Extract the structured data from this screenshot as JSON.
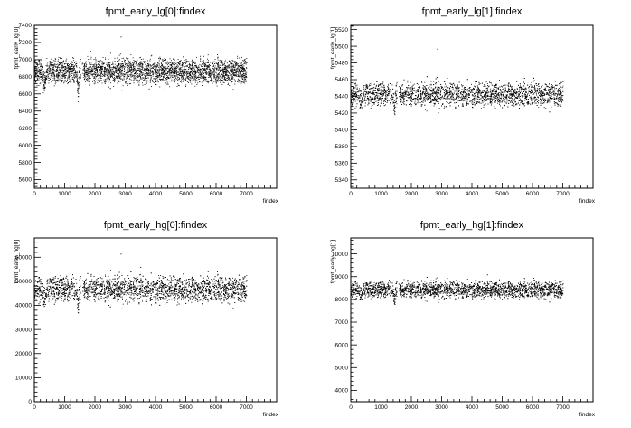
{
  "chart_data": [
    {
      "type": "scatter",
      "title": "fpmt_early_lg[0]:findex",
      "xlabel": "findex",
      "ylabel": "fpmt_early_lg[0]",
      "xlim": [
        0,
        8000
      ],
      "ylim": [
        5500,
        7400
      ],
      "xticks": [
        "0",
        "1000",
        "2000",
        "3000",
        "4000",
        "5000",
        "6000",
        "7000"
      ],
      "yticks": [
        "5600",
        "5800",
        "6000",
        "6200",
        "6400",
        "6600",
        "6800",
        "7000",
        "7200",
        "7400"
      ],
      "series": [
        {
          "x_range": [
            0,
            7000
          ],
          "typical_y": 6870,
          "spread": 70,
          "features": [
            {
              "x": [
                250,
                400
              ],
              "y": 6700
            },
            {
              "x": [
                1380,
                1480
              ],
              "y": 6620
            }
          ],
          "outliers": [
            {
              "x": 2850,
              "y": 7270
            },
            {
              "x": 1850,
              "y": 7100
            }
          ]
        }
      ],
      "grid": false
    },
    {
      "type": "scatter",
      "title": "fpmt_early_lg[1]:findex",
      "xlabel": "findex",
      "ylabel": "fpmt_early_lg[1]",
      "xlim": [
        0,
        8000
      ],
      "ylim": [
        5330,
        5525
      ],
      "xticks": [
        "0",
        "1000",
        "2000",
        "3000",
        "4000",
        "5000",
        "6000",
        "7000"
      ],
      "yticks": [
        "5340",
        "5360",
        "5380",
        "5400",
        "5420",
        "5440",
        "5460",
        "5480",
        "5500",
        "5520"
      ],
      "series": [
        {
          "x_range": [
            0,
            7000
          ],
          "typical_y": 5443,
          "spread": 7,
          "features": [
            {
              "x": [
                250,
                400
              ],
              "y": 5432
            },
            {
              "x": [
                1380,
                1480
              ],
              "y": 5425
            }
          ],
          "outliers": [
            {
              "x": 2850,
              "y": 5497
            }
          ]
        }
      ],
      "grid": false
    },
    {
      "type": "scatter",
      "title": "fpmt_early_hg[0]:findex",
      "xlabel": "findex",
      "ylabel": "fpmt_early_hg[0]",
      "xlim": [
        0,
        8000
      ],
      "ylim": [
        0,
        68000
      ],
      "xticks": [
        "0",
        "1000",
        "2000",
        "3000",
        "4000",
        "5000",
        "6000",
        "7000"
      ],
      "yticks": [
        "0",
        "10000",
        "20000",
        "30000",
        "40000",
        "50000",
        "60000"
      ],
      "series": [
        {
          "x_range": [
            0,
            7000
          ],
          "typical_y": 47000,
          "spread": 2600,
          "features": [
            {
              "x": [
                250,
                400
              ],
              "y": 42000
            },
            {
              "x": [
                1380,
                1480
              ],
              "y": 39000
            }
          ],
          "outliers": [
            {
              "x": 2850,
              "y": 61500
            },
            {
              "x": 3500,
              "y": 56000
            }
          ]
        }
      ],
      "grid": false
    },
    {
      "type": "scatter",
      "title": "fpmt_early_hg[1]:findex",
      "xlabel": "findex",
      "ylabel": "fpmt_early_hg[1]",
      "xlim": [
        0,
        8000
      ],
      "ylim": [
        3500,
        10700
      ],
      "xticks": [
        "0",
        "1000",
        "2000",
        "3000",
        "4000",
        "5000",
        "6000",
        "7000"
      ],
      "yticks": [
        "4000",
        "5000",
        "6000",
        "7000",
        "8000",
        "9000",
        "10000"
      ],
      "series": [
        {
          "x_range": [
            0,
            7000
          ],
          "typical_y": 8450,
          "spread": 180,
          "features": [
            {
              "x": [
                250,
                400
              ],
              "y": 8150
            },
            {
              "x": [
                1380,
                1480
              ],
              "y": 7950
            }
          ],
          "outliers": [
            {
              "x": 2850,
              "y": 10100
            },
            {
              "x": 4500,
              "y": 9100
            }
          ]
        }
      ],
      "grid": false
    }
  ]
}
